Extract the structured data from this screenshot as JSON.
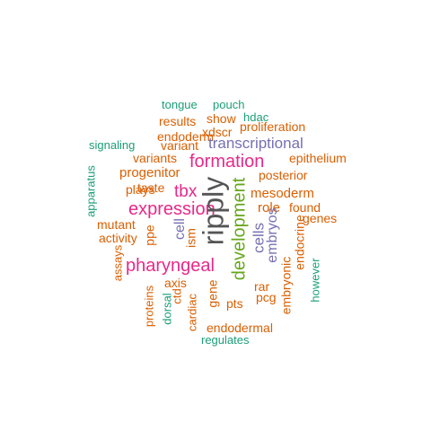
{
  "colors": {
    "orange": "#d95f02",
    "teal": "#1b9e77",
    "purple": "#7570b3",
    "magenta": "#e7298a",
    "green": "#66a61e",
    "gray": "#555555"
  },
  "words": [
    {
      "text": "tongue"
    },
    {
      "text": "pouch"
    },
    {
      "text": "results"
    },
    {
      "text": "show"
    },
    {
      "text": "hdac"
    },
    {
      "text": "proliferation"
    },
    {
      "text": "endoderm"
    },
    {
      "text": "xdscr"
    },
    {
      "text": "signaling"
    },
    {
      "text": "variant"
    },
    {
      "text": "transcriptional"
    },
    {
      "text": "variants"
    },
    {
      "text": "formation"
    },
    {
      "text": "epithelium"
    },
    {
      "text": "progenitor"
    },
    {
      "text": "posterior"
    },
    {
      "text": "apparatus"
    },
    {
      "text": "plays"
    },
    {
      "text": "taste"
    },
    {
      "text": "tbx"
    },
    {
      "text": "mesoderm"
    },
    {
      "text": "expression"
    },
    {
      "text": "role"
    },
    {
      "text": "found"
    },
    {
      "text": "genes"
    },
    {
      "text": "mutant"
    },
    {
      "text": "activity"
    },
    {
      "text": "ripply"
    },
    {
      "text": "development"
    },
    {
      "text": "cell"
    },
    {
      "text": "ppe"
    },
    {
      "text": "cells"
    },
    {
      "text": "embryos"
    },
    {
      "text": "endocrine"
    },
    {
      "text": "assays"
    },
    {
      "text": "pharyngeal"
    },
    {
      "text": "axis"
    },
    {
      "text": "ism"
    },
    {
      "text": "rar"
    },
    {
      "text": "pcg"
    },
    {
      "text": "embryonic"
    },
    {
      "text": "however"
    },
    {
      "text": "proteins"
    },
    {
      "text": "dorsal"
    },
    {
      "text": "ctd"
    },
    {
      "text": "cardiac"
    },
    {
      "text": "gene"
    },
    {
      "text": "pts"
    },
    {
      "text": "endodermal"
    },
    {
      "text": "regulates"
    }
  ]
}
